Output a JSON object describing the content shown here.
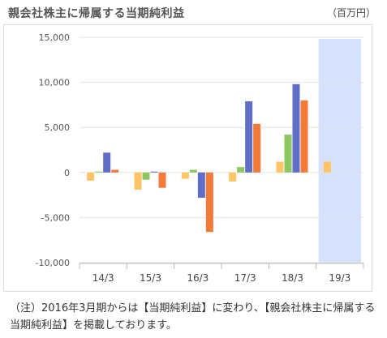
{
  "chart_data": {
    "type": "bar",
    "title": "親会社株主に帰属する当期純利益",
    "unit": "（百万円）",
    "categories": [
      "14/3",
      "15/3",
      "16/3",
      "17/3",
      "18/3",
      "19/3"
    ],
    "ylim": [
      -10000,
      15000
    ],
    "yticks": [
      15000,
      10000,
      5000,
      0,
      -5000,
      -10000
    ],
    "ytick_labels": [
      "15,000",
      "10,000",
      "5,000",
      "0",
      "-5,000",
      "-10,000"
    ],
    "grid": true,
    "highlight_category": "19/3",
    "series": [
      {
        "color": "#ffc466",
        "values": [
          -900,
          -1900,
          -700,
          -1000,
          1200,
          1200
        ]
      },
      {
        "color": "#8cc764",
        "values": [
          100,
          -800,
          300,
          600,
          4200,
          null
        ]
      },
      {
        "color": "#5f6ec4",
        "values": [
          2200,
          100,
          -2800,
          7900,
          9800,
          null
        ]
      },
      {
        "color": "#f47a3a",
        "values": [
          300,
          -1700,
          -6600,
          5400,
          8000,
          null
        ]
      }
    ],
    "highlight_color": "#d6e2fb"
  },
  "note": "（注）2016年3月期からは【当期純利益】に変わり、【親会社株主に帰属する当期純利益】を掲載しております。"
}
